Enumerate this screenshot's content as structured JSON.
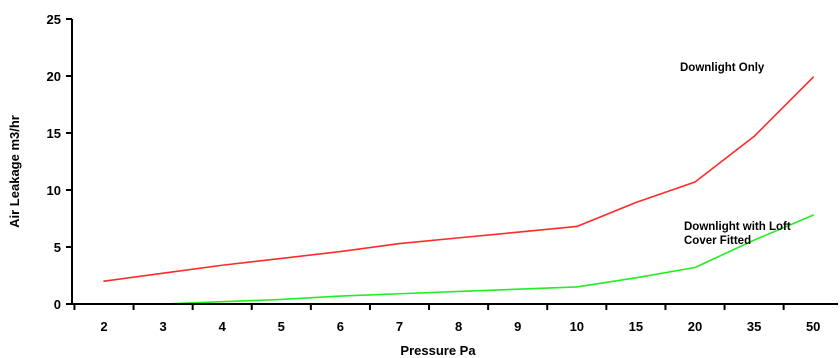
{
  "chart_data": {
    "type": "line",
    "title": "",
    "xlabel": "Pressure Pa",
    "ylabel": "Air Leakage m3/hr",
    "categories": [
      "2",
      "3",
      "4",
      "5",
      "6",
      "7",
      "8",
      "9",
      "10",
      "15",
      "20",
      "35",
      "50"
    ],
    "ylim": [
      0,
      25
    ],
    "yticks": [
      0,
      5,
      10,
      15,
      20,
      25
    ],
    "grid": false,
    "series": [
      {
        "name": "Downlight Only",
        "color": "#ff2a2a",
        "values": [
          2.0,
          2.7,
          3.4,
          4.0,
          4.6,
          5.3,
          5.8,
          6.3,
          6.8,
          8.9,
          10.7,
          14.7,
          19.9
        ]
      },
      {
        "name": "Downlight with Loft Cover Fitted",
        "color": "#22ee22",
        "values": [
          0.0,
          0.0,
          0.2,
          0.4,
          0.7,
          0.9,
          1.1,
          1.3,
          1.5,
          2.3,
          3.2,
          5.6,
          7.8
        ]
      }
    ],
    "annotations": [
      {
        "id": "annot-downlight-only",
        "lines": [
          "Downlight Only"
        ]
      },
      {
        "id": "annot-downlight-loft",
        "lines": [
          "Downlight with Loft",
          "Cover Fitted"
        ]
      }
    ]
  }
}
